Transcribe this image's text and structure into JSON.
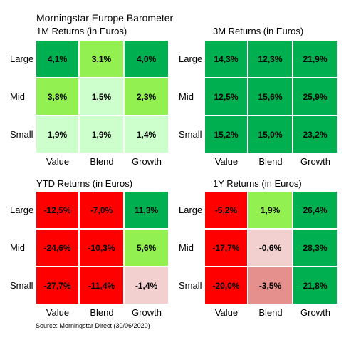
{
  "header": {
    "title": "Morningstar Europe Barometer",
    "source": "Source: Morningstar Direct (30/06/2020)"
  },
  "colors": {
    "dark_green": "#00b050",
    "light_green": "#92f050",
    "pale_green": "#ccffcc",
    "pink": "#f2d0cf",
    "salmon": "#e6908d",
    "red": "#ff0000"
  },
  "chart_data": [
    {
      "type": "heatmap",
      "title": "1M Returns (in Euros)",
      "rows": [
        "Large",
        "Mid",
        "Small"
      ],
      "columns": [
        "Value",
        "Blend",
        "Growth"
      ],
      "labels": [
        [
          "4,1%",
          "3,1%",
          "4,0%"
        ],
        [
          "3,8%",
          "1,5%",
          "2,3%"
        ],
        [
          "1,9%",
          "1,9%",
          "1,4%"
        ]
      ],
      "values": [
        [
          4.1,
          3.1,
          4.0
        ],
        [
          3.8,
          1.5,
          2.3
        ],
        [
          1.9,
          1.9,
          1.4
        ]
      ],
      "colors": [
        [
          "#00b050",
          "#92f050",
          "#00b050"
        ],
        [
          "#92f050",
          "#ccffcc",
          "#92f050"
        ],
        [
          "#ccffcc",
          "#ccffcc",
          "#ccffcc"
        ]
      ]
    },
    {
      "type": "heatmap",
      "title": "3M Returns (in Euros)",
      "rows": [
        "Large",
        "Mid",
        "Small"
      ],
      "columns": [
        "Value",
        "Blend",
        "Growth"
      ],
      "labels": [
        [
          "14,3%",
          "12,3%",
          "21,9%"
        ],
        [
          "12,5%",
          "15,6%",
          "25,9%"
        ],
        [
          "15,2%",
          "15,0%",
          "23,2%"
        ]
      ],
      "values": [
        [
          14.3,
          12.3,
          21.9
        ],
        [
          12.5,
          15.6,
          25.9
        ],
        [
          15.2,
          15.0,
          23.2
        ]
      ],
      "colors": [
        [
          "#00b050",
          "#00b050",
          "#00b050"
        ],
        [
          "#00b050",
          "#00b050",
          "#00b050"
        ],
        [
          "#00b050",
          "#00b050",
          "#00b050"
        ]
      ]
    },
    {
      "type": "heatmap",
      "title": "YTD Returns (in Euros)",
      "rows": [
        "Large",
        "Mid",
        "Small"
      ],
      "columns": [
        "Value",
        "Blend",
        "Growth"
      ],
      "labels": [
        [
          "-12,5%",
          "-7,0%",
          "11,3%"
        ],
        [
          "-24,6%",
          "-10,3%",
          "5,6%"
        ],
        [
          "-27,7%",
          "-11,4%",
          "-1,4%"
        ]
      ],
      "values": [
        [
          -12.5,
          -7.0,
          11.3
        ],
        [
          -24.6,
          -10.3,
          5.6
        ],
        [
          -27.7,
          -11.4,
          -1.4
        ]
      ],
      "colors": [
        [
          "#ff0000",
          "#ff0000",
          "#00b050"
        ],
        [
          "#ff0000",
          "#ff0000",
          "#92f050"
        ],
        [
          "#ff0000",
          "#ff0000",
          "#f2d0cf"
        ]
      ]
    },
    {
      "type": "heatmap",
      "title": "1Y Returns (in Euros)",
      "rows": [
        "Large",
        "Mid",
        "Small"
      ],
      "columns": [
        "Value",
        "Blend",
        "Growth"
      ],
      "labels": [
        [
          "-5,2%",
          "1,9%",
          "26,4%"
        ],
        [
          "-17,7%",
          "-0,6%",
          "28,3%"
        ],
        [
          "-20,0%",
          "-3,5%",
          "21,8%"
        ]
      ],
      "values": [
        [
          -5.2,
          1.9,
          26.4
        ],
        [
          -17.7,
          -0.6,
          28.3
        ],
        [
          -20.0,
          -3.5,
          21.8
        ]
      ],
      "colors": [
        [
          "#ff0000",
          "#92f050",
          "#00b050"
        ],
        [
          "#ff0000",
          "#f2d0cf",
          "#00b050"
        ],
        [
          "#ff0000",
          "#e6908d",
          "#00b050"
        ]
      ]
    }
  ]
}
